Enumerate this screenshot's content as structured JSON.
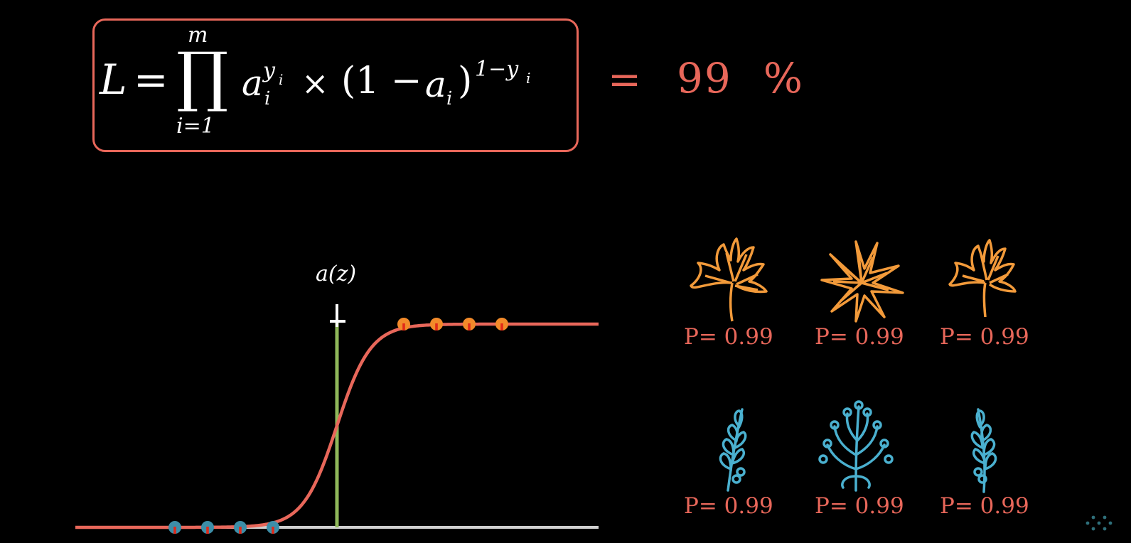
{
  "formula": {
    "lhs": "L",
    "equals": "=",
    "prod_upper": "m",
    "prod_lower": "i=1",
    "base": "a",
    "base_sub": "i",
    "exponent": "y",
    "exponent_sub": "i",
    "times": "×",
    "paren_open": "(1 −",
    "paren_term": "a",
    "paren_term_sub": "i",
    "paren_close": ")",
    "outer_exp": "1−y",
    "outer_exp_sub": "i"
  },
  "result": {
    "equals": "=",
    "value": "99",
    "unit": "%"
  },
  "plot": {
    "axis_label": "a(z)",
    "curve_color": "#e8675a",
    "threshold_color": "#8fb85a",
    "class1_points": 4,
    "class0_points": 4,
    "class1_color": "#f28a2a",
    "class0_color": "#3d8ea8"
  },
  "leaves": {
    "orange_color": "#f29a3a",
    "blue_color": "#4ab0cf",
    "top_row": [
      {
        "icon": "maple-leaf-icon",
        "label": "P= 0.99"
      },
      {
        "icon": "star-leaf-icon",
        "label": "P= 0.99"
      },
      {
        "icon": "maple-leaf-icon",
        "label": "P= 0.99"
      }
    ],
    "bottom_row": [
      {
        "icon": "sprig-leaf-icon",
        "label": "P= 0.99"
      },
      {
        "icon": "bushy-sprig-icon",
        "label": "P= 0.99"
      },
      {
        "icon": "sprig-leaf-icon",
        "label": "P= 0.99"
      }
    ]
  }
}
